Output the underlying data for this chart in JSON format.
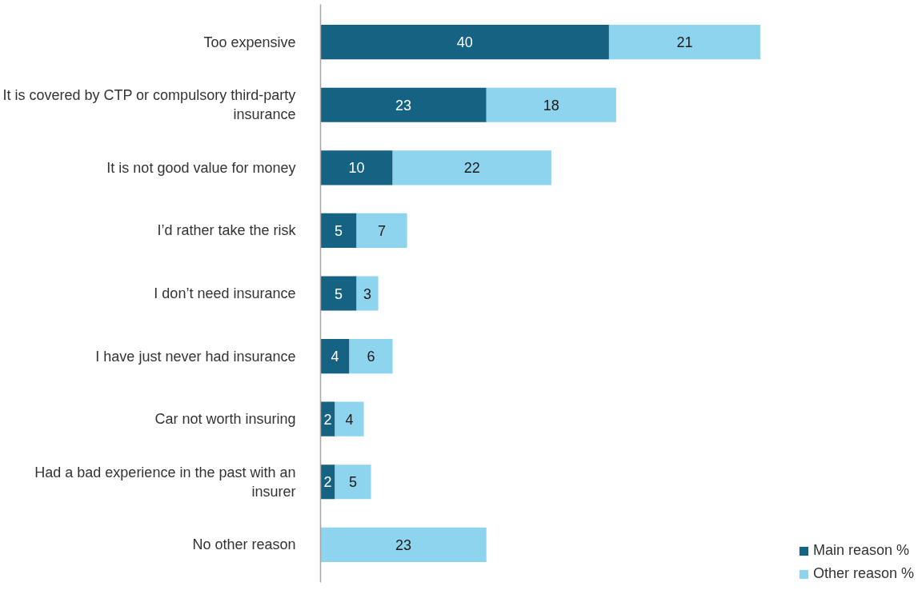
{
  "chart_data": {
    "type": "bar",
    "orientation": "horizontal",
    "stacked": true,
    "data_labels": true,
    "legend": "bottom right",
    "grid": false,
    "tick_labels": "y",
    "categories": [
      "Too expensive",
      "It is covered by CTP or compulsory third-party insurance",
      "It is not good value for money",
      "I’d rather take the risk",
      "I don’t need insurance",
      "I have just never had insurance",
      "Car not worth insuring",
      "Had a bad experience in the past with an insurer",
      "No other reason"
    ],
    "series": [
      {
        "name": "Main reason %",
        "color": "#166282",
        "values": [
          40,
          23,
          10,
          5,
          5,
          4,
          2,
          2,
          null
        ]
      },
      {
        "name": "Other reason %",
        "color": "#8fd4ef",
        "values": [
          21,
          18,
          22,
          7,
          3,
          6,
          4,
          5,
          23
        ]
      }
    ]
  }
}
